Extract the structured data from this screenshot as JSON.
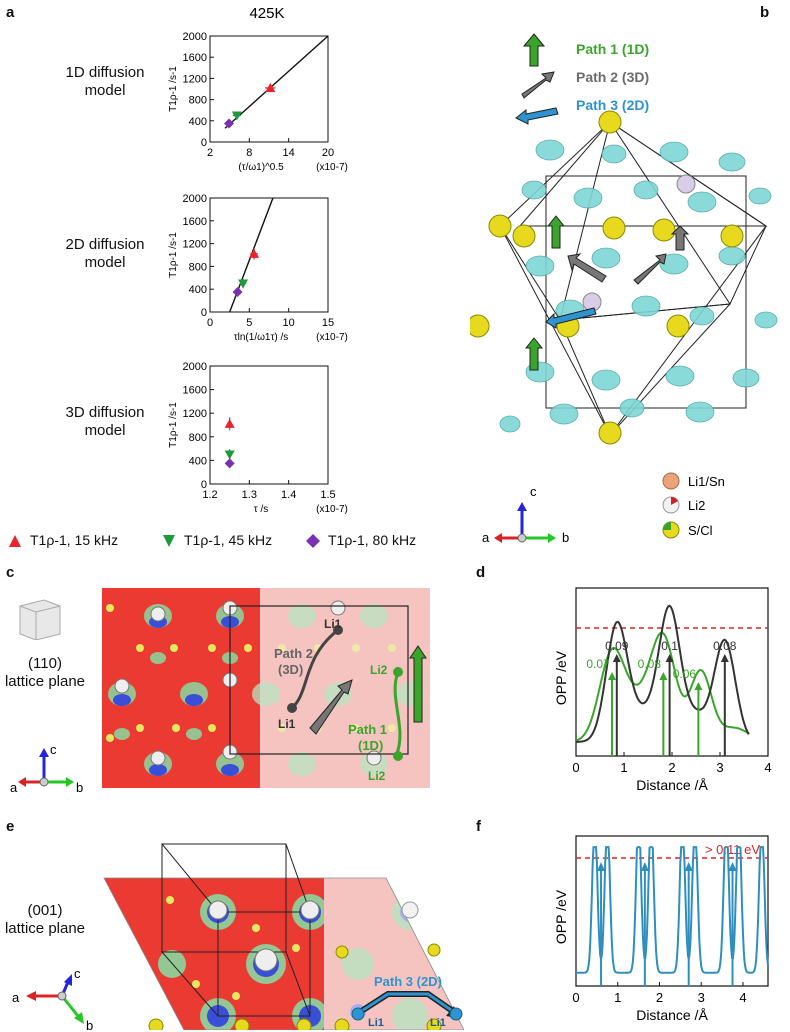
{
  "panels": {
    "a": "a",
    "b": "b",
    "c": "c",
    "d": "d",
    "e": "e",
    "f": "f"
  },
  "temperature": "425K",
  "panel_a": {
    "models": [
      {
        "label_1": "1D diffusion",
        "label_2": "model"
      },
      {
        "label_1": "2D diffusion",
        "label_2": "model"
      },
      {
        "label_1": "3D diffusion",
        "label_2": "model"
      }
    ],
    "ylabel": "T1ρ-1 /s-1",
    "legend": [
      {
        "text": "T1ρ-1, 15 kHz",
        "color": "#e8242a",
        "marker": "triangle-up"
      },
      {
        "text": "T1ρ-1, 45 kHz",
        "color": "#1f9a3a",
        "marker": "triangle-down"
      },
      {
        "text": "T1ρ-1, 80 kHz",
        "color": "#7b2fb6",
        "marker": "diamond"
      }
    ]
  },
  "chart_data": [
    {
      "type": "scatter",
      "title": "425K",
      "xlabel": "(τ/ω1)^0.5",
      "xunit": "(x10-7)",
      "ylabel": "T1ρ-1 /s-1",
      "xlim": [
        2,
        20
      ],
      "ylim": [
        0,
        2000
      ],
      "xticks": [
        2,
        8,
        14,
        20
      ],
      "yticks": [
        0,
        400,
        800,
        1200,
        1600,
        2000
      ],
      "fit_line": {
        "x": [
          4.3,
          20.0
        ],
        "y": [
          260,
          2000
        ]
      },
      "series": [
        {
          "name": "15 kHz",
          "x": [
            11.2
          ],
          "y": [
            1020
          ],
          "xerr": [
            0.8
          ],
          "yerr": [
            80
          ]
        },
        {
          "name": "45 kHz",
          "x": [
            6.1
          ],
          "y": [
            500
          ],
          "xerr": [
            0.6
          ],
          "yerr": [
            70
          ]
        },
        {
          "name": "80 kHz",
          "x": [
            4.9
          ],
          "y": [
            350
          ],
          "xerr": [
            0.4
          ],
          "yerr": [
            60
          ]
        }
      ]
    },
    {
      "type": "scatter",
      "xlabel": "τln(1/ω1τ) /s",
      "xunit": "(x10-7)",
      "ylabel": "T1ρ-1 /s-1",
      "xlim": [
        0,
        15
      ],
      "ylim": [
        0,
        2000
      ],
      "xticks": [
        0,
        5,
        10,
        15
      ],
      "yticks": [
        0,
        400,
        800,
        1200,
        1600,
        2000
      ],
      "fit_line": {
        "x": [
          2.5,
          8.0
        ],
        "y": [
          0,
          2000
        ]
      },
      "series": [
        {
          "name": "15 kHz",
          "x": [
            5.6
          ],
          "y": [
            1020
          ],
          "xerr": [
            0.5
          ],
          "yerr": [
            100
          ]
        },
        {
          "name": "45 kHz",
          "x": [
            4.2
          ],
          "y": [
            500
          ],
          "xerr": [
            0.4
          ],
          "yerr": [
            80
          ]
        },
        {
          "name": "80 kHz",
          "x": [
            3.5
          ],
          "y": [
            350
          ],
          "xerr": [
            0.3
          ],
          "yerr": [
            60
          ]
        }
      ]
    },
    {
      "type": "scatter",
      "xlabel": "τ /s",
      "xunit": "(x10-7)",
      "ylabel": "T1ρ-1 /s-1",
      "xlim": [
        1.2,
        1.5
      ],
      "ylim": [
        0,
        2000
      ],
      "xticks": [
        1.2,
        1.3,
        1.4,
        1.5
      ],
      "yticks": [
        0,
        400,
        800,
        1200,
        1600,
        2000
      ],
      "series": [
        {
          "name": "15 kHz",
          "x": [
            1.25
          ],
          "y": [
            1020
          ],
          "yerr": [
            110
          ]
        },
        {
          "name": "45 kHz",
          "x": [
            1.25
          ],
          "y": [
            500
          ],
          "yerr": [
            90
          ]
        },
        {
          "name": "80 kHz",
          "x": [
            1.25
          ],
          "y": [
            350
          ],
          "yerr": [
            70
          ]
        }
      ]
    },
    {
      "type": "line",
      "xlabel": "Distance /Å",
      "ylabel": "OPP /eV",
      "xlim": [
        0,
        4
      ],
      "xticks": [
        0,
        1,
        2,
        3,
        4
      ],
      "threshold_label": "",
      "annotations": [
        {
          "text": "0.09",
          "x": 0.85,
          "color": "#333333"
        },
        {
          "text": "0.1",
          "x": 1.95,
          "color": "#333333"
        },
        {
          "text": "0.08",
          "x": 3.1,
          "color": "#333333"
        },
        {
          "text": "0.07",
          "x": 0.75,
          "color": "#3aa52b"
        },
        {
          "text": "0.08",
          "x": 1.82,
          "color": "#3aa52b"
        },
        {
          "text": "0.06",
          "x": 2.55,
          "color": "#3aa52b"
        }
      ]
    },
    {
      "type": "line",
      "xlabel": "Distance /Å",
      "ylabel": "OPP /eV",
      "xlim": [
        0,
        4.6
      ],
      "xticks": [
        0,
        1,
        2,
        3,
        4
      ],
      "threshold_label": "> 0.11 eV",
      "arrows_x": [
        0.6,
        1.65,
        2.7,
        3.75
      ]
    }
  ],
  "panel_b": {
    "paths": [
      {
        "label": "Path 1 (1D)",
        "color": "#3aa52b"
      },
      {
        "label": "Path 2 (3D)",
        "color": "#6b6b6b"
      },
      {
        "label": "Path 3 (2D)",
        "color": "#2e93d1"
      }
    ],
    "species": [
      {
        "label": "Li1/Sn"
      },
      {
        "label": "Li2"
      },
      {
        "label": "S/Cl"
      }
    ],
    "axes": {
      "a": "a",
      "b": "b",
      "c": "c"
    }
  },
  "panel_c": {
    "plane_1": "(110)",
    "plane_2": "lattice plane",
    "atoms": {
      "li1_top": "Li1",
      "li1_bottom": "Li1",
      "li2_top": "Li2",
      "li2_bottom": "Li2"
    },
    "path2": {
      "line1": "Path 2",
      "line2": "(3D)"
    },
    "path1": {
      "line1": "Path 1",
      "line2": "(1D)"
    },
    "axes": {
      "a": "a",
      "b": "b",
      "c": "c"
    }
  },
  "panel_e": {
    "plane_1": "(001)",
    "plane_2": "lattice plane",
    "path3": "Path 3 (2D)",
    "atoms": {
      "left": "Li1",
      "right": "Li1"
    },
    "axes": {
      "a": "a",
      "b": "b",
      "c": "c"
    }
  }
}
